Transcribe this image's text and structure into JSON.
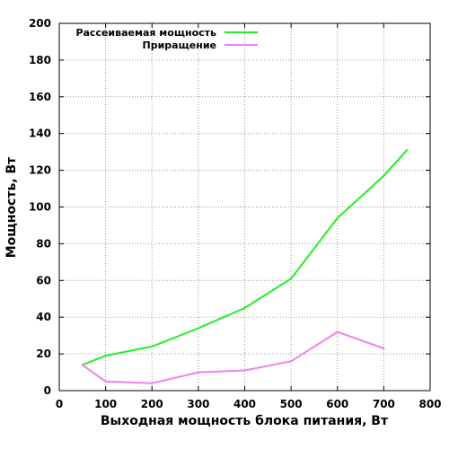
{
  "chart_data": {
    "type": "line",
    "xlabel": "Выходная мощность блока питания, Вт",
    "ylabel": "Мощность, Вт",
    "xlim": [
      0,
      800
    ],
    "ylim": [
      0,
      200
    ],
    "xticks": [
      0,
      100,
      200,
      300,
      400,
      500,
      600,
      700,
      800
    ],
    "yticks": [
      0,
      20,
      40,
      60,
      80,
      100,
      120,
      140,
      160,
      180,
      200
    ],
    "grid": true,
    "legend_position": "top-left",
    "series": [
      {
        "name": "Рассеиваемая мощность",
        "color": "#22ee22",
        "x": [
          50,
          100,
          200,
          300,
          400,
          500,
          600,
          700,
          750
        ],
        "y": [
          14,
          19,
          24,
          34,
          45,
          61,
          94,
          117,
          131
        ]
      },
      {
        "name": "Приращение",
        "color": "#ee82ee",
        "x": [
          50,
          100,
          200,
          300,
          400,
          500,
          600,
          700
        ],
        "y": [
          14,
          5,
          4,
          10,
          11,
          16,
          32,
          23
        ]
      }
    ]
  }
}
